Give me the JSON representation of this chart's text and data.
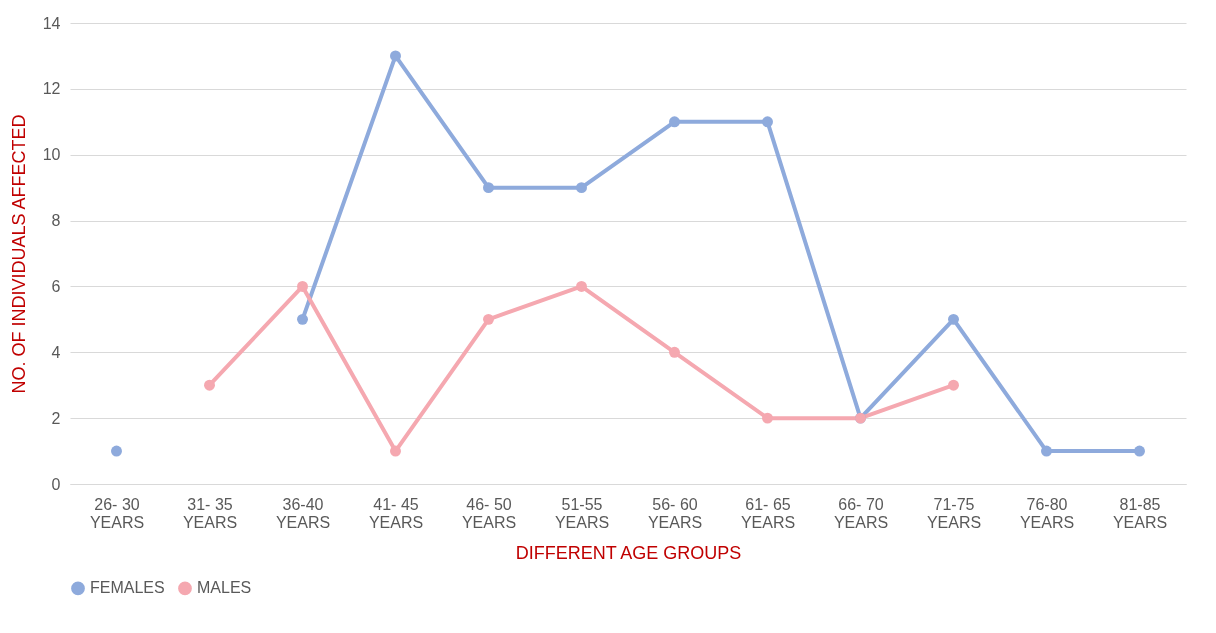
{
  "chart_data": {
    "type": "line",
    "xlabel": "DIFFERENT AGE GROUPS",
    "ylabel": "NO. OF INDIVIDUALS AFFECTED",
    "categories": [
      "26- 30 YEARS",
      "31- 35 YEARS",
      "36-40 YEARS",
      "41- 45 YEARS",
      "46- 50 YEARS",
      "51-55 YEARS",
      "56- 60 YEARS",
      "61- 65 YEARS",
      "66- 70 YEARS",
      "71-75 YEARS",
      "76-80 YEARS",
      "81-85 YEARS"
    ],
    "series": [
      {
        "name": "FEMALES",
        "color": "#8eaadc",
        "values": [
          1,
          null,
          5,
          13,
          9,
          9,
          11,
          11,
          2,
          5,
          1,
          1
        ]
      },
      {
        "name": "MALES",
        "color": "#f5a8b0",
        "values": [
          null,
          3,
          6,
          1,
          5,
          6,
          4,
          2,
          2,
          3,
          null,
          null
        ]
      }
    ],
    "ylim": [
      0,
      14
    ],
    "yticks": [
      0,
      2,
      4,
      6,
      8,
      10,
      12,
      14
    ],
    "grid": "y",
    "legend": "bottom",
    "marker": "circle",
    "line_style": "solid"
  }
}
